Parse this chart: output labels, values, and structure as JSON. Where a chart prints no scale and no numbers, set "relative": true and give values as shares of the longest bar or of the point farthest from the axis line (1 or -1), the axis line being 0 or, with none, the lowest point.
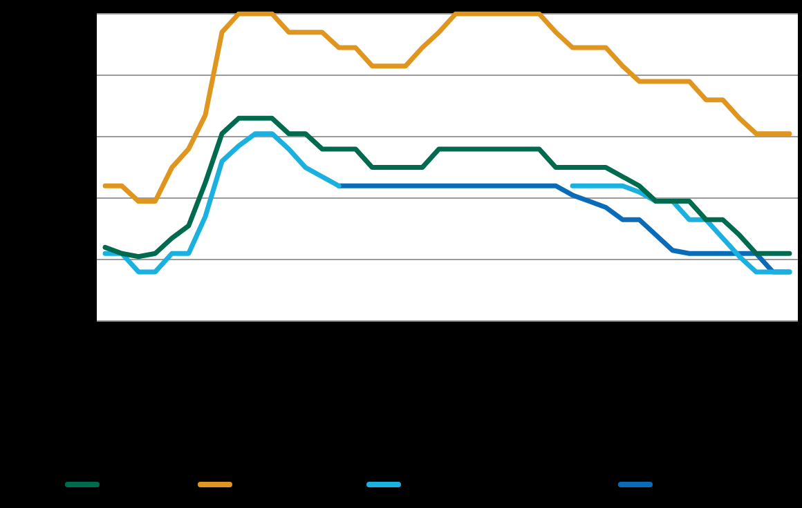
{
  "chart_data": {
    "type": "line",
    "relative": true,
    "grid": "y",
    "marker": "none",
    "line_style": "solid",
    "categories": [
      null,
      null,
      null,
      null,
      null,
      null,
      null,
      null,
      null,
      null,
      null,
      null,
      null,
      null,
      null,
      null,
      null,
      null,
      null,
      null,
      null,
      null,
      null,
      null,
      null,
      null,
      null,
      null,
      null,
      null,
      null,
      null,
      null,
      null,
      null,
      null,
      null,
      null,
      null,
      null,
      null,
      null
    ],
    "series": [
      {
        "color": "#006a4e",
        "values": [
          0.24,
          0.22,
          0.21,
          0.22,
          0.27,
          0.31,
          0.45,
          0.61,
          0.66,
          0.66,
          0.66,
          0.61,
          0.61,
          0.56,
          0.56,
          0.56,
          0.5,
          0.5,
          0.5,
          0.5,
          0.56,
          0.56,
          0.56,
          0.56,
          0.56,
          0.56,
          0.56,
          0.5,
          0.5,
          0.5,
          0.5,
          0.47,
          0.44,
          0.39,
          0.39,
          0.39,
          0.33,
          0.33,
          0.28,
          0.22,
          0.22,
          0.22
        ]
      },
      {
        "color": "#e0961e",
        "values": [
          0.44,
          0.44,
          0.39,
          0.39,
          0.5,
          0.56,
          0.67,
          0.94,
          1,
          1,
          1,
          0.94,
          0.94,
          0.94,
          0.89,
          0.89,
          0.83,
          0.83,
          0.83,
          0.89,
          0.94,
          1,
          1,
          1,
          1,
          1,
          1,
          0.94,
          0.89,
          0.89,
          0.89,
          0.83,
          0.78,
          0.78,
          0.78,
          0.78,
          0.72,
          0.72,
          0.66,
          0.61,
          0.61,
          0.61
        ]
      },
      {
        "color": "#1ab0e0",
        "values": [
          0.22,
          0.22,
          0.16,
          0.16,
          0.22,
          0.22,
          0.34,
          0.52,
          0.57,
          0.61,
          0.61,
          0.56,
          0.5,
          0.47,
          0.44,
          null,
          null,
          null,
          null,
          null,
          null,
          null,
          null,
          null,
          null,
          null,
          null,
          null,
          0.44,
          0.44,
          0.44,
          0.44,
          0.42,
          0.39,
          0.39,
          0.33,
          0.33,
          0.27,
          0.21,
          0.16,
          0.16,
          0.16
        ]
      },
      {
        "color": "#0a6cb8",
        "values": [
          null,
          null,
          null,
          null,
          null,
          null,
          null,
          null,
          null,
          null,
          null,
          null,
          null,
          null,
          0.44,
          0.44,
          0.44,
          0.44,
          0.44,
          0.44,
          0.44,
          0.44,
          0.44,
          0.44,
          0.44,
          0.44,
          0.44,
          0.44,
          0.41,
          0.39,
          0.37,
          0.33,
          0.33,
          0.28,
          0.23,
          0.22,
          0.22,
          0.22,
          0.22,
          0.22,
          0.16,
          0.16
        ]
      }
    ]
  }
}
